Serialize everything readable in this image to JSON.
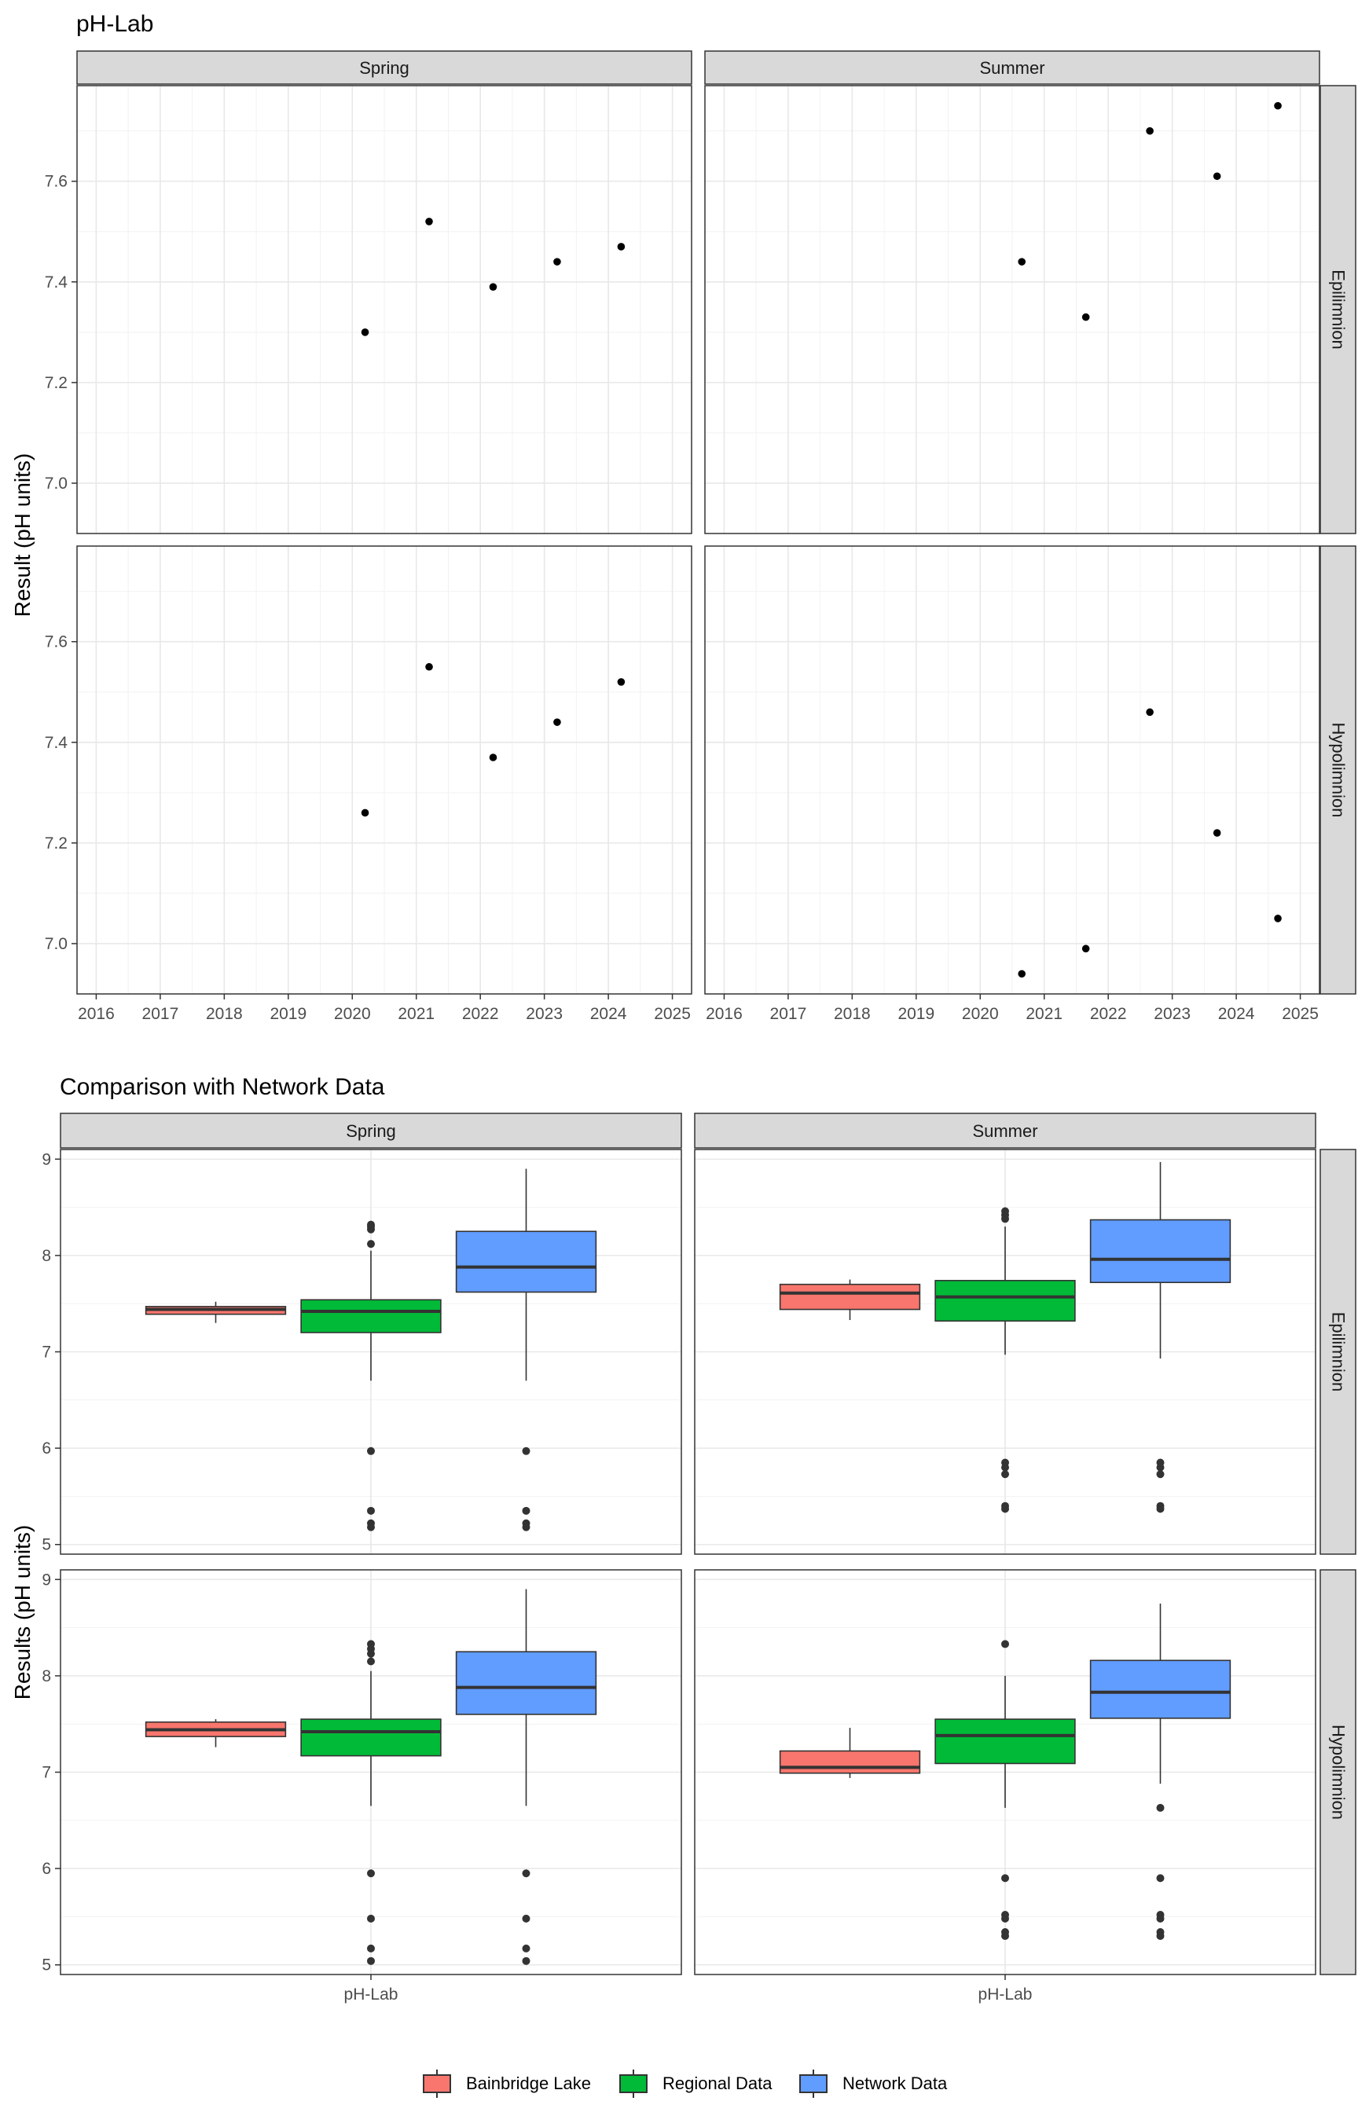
{
  "chart_data": [
    {
      "type": "scatter",
      "title": "pH-Lab",
      "ylabel": "Result (pH units)",
      "xlabel": "",
      "xlim": [
        2015.7,
        2025.3
      ],
      "ylim": [
        6.9,
        7.79
      ],
      "x_ticks": [
        "2016",
        "2017",
        "2018",
        "2019",
        "2020",
        "2021",
        "2022",
        "2023",
        "2024",
        "2025"
      ],
      "y_ticks": [
        "7.0",
        "7.2",
        "7.4",
        "7.6"
      ],
      "col_facets": [
        "Spring",
        "Summer"
      ],
      "row_facets": [
        "Epilimnion",
        "Hypolimnion"
      ],
      "panels": [
        {
          "col": "Spring",
          "row": "Epilimnion",
          "points": [
            [
              2020.2,
              7.3
            ],
            [
              2021.2,
              7.52
            ],
            [
              2022.2,
              7.39
            ],
            [
              2023.2,
              7.44
            ],
            [
              2024.2,
              7.47
            ]
          ]
        },
        {
          "col": "Summer",
          "row": "Epilimnion",
          "points": [
            [
              2020.65,
              7.44
            ],
            [
              2021.65,
              7.33
            ],
            [
              2022.65,
              7.7
            ],
            [
              2023.7,
              7.61
            ],
            [
              2024.65,
              7.75
            ]
          ]
        },
        {
          "col": "Spring",
          "row": "Hypolimnion",
          "points": [
            [
              2020.2,
              7.26
            ],
            [
              2021.2,
              7.55
            ],
            [
              2022.2,
              7.37
            ],
            [
              2023.2,
              7.44
            ],
            [
              2024.2,
              7.52
            ]
          ]
        },
        {
          "col": "Summer",
          "row": "Hypolimnion",
          "points": [
            [
              2020.65,
              6.94
            ],
            [
              2021.65,
              6.99
            ],
            [
              2022.65,
              7.46
            ],
            [
              2023.7,
              7.22
            ],
            [
              2024.65,
              7.05
            ]
          ]
        }
      ]
    },
    {
      "type": "box",
      "title": "Comparison with Network Data",
      "ylabel": "Results (pH units)",
      "xlabel": "",
      "category": "pH-Lab",
      "ylim": [
        4.9,
        9.1
      ],
      "y_ticks": [
        "5",
        "6",
        "7",
        "8",
        "9"
      ],
      "col_facets": [
        "Spring",
        "Summer"
      ],
      "row_facets": [
        "Epilimnion",
        "Hypolimnion"
      ],
      "groups": [
        {
          "name": "Bainbridge Lake",
          "color": "#F8766D"
        },
        {
          "name": "Regional Data",
          "color": "#00BA38"
        },
        {
          "name": "Network Data",
          "color": "#619CFF"
        }
      ],
      "panels": [
        {
          "col": "Spring",
          "row": "Epilimnion",
          "boxes": [
            {
              "group": "Bainbridge Lake",
              "lw": 7.3,
              "q1": 7.39,
              "med": 7.44,
              "q3": 7.47,
              "uw": 7.52,
              "outliers": []
            },
            {
              "group": "Regional Data",
              "lw": 6.7,
              "q1": 7.2,
              "med": 7.42,
              "q3": 7.54,
              "uw": 8.05,
              "outliers": [
                8.12,
                8.27,
                8.3,
                8.32,
                5.97,
                5.35,
                5.22,
                5.18
              ]
            },
            {
              "group": "Network Data",
              "lw": 6.7,
              "q1": 7.62,
              "med": 7.88,
              "q3": 8.25,
              "uw": 8.9,
              "outliers": [
                5.97,
                5.35,
                5.22,
                5.18
              ]
            }
          ]
        },
        {
          "col": "Summer",
          "row": "Epilimnion",
          "boxes": [
            {
              "group": "Bainbridge Lake",
              "lw": 7.33,
              "q1": 7.44,
              "med": 7.61,
              "q3": 7.7,
              "uw": 7.75,
              "outliers": []
            },
            {
              "group": "Regional Data",
              "lw": 6.97,
              "q1": 7.32,
              "med": 7.57,
              "q3": 7.74,
              "uw": 8.3,
              "outliers": [
                8.38,
                8.42,
                8.46,
                5.85,
                5.8,
                5.73,
                5.4,
                5.37
              ]
            },
            {
              "group": "Network Data",
              "lw": 6.93,
              "q1": 7.72,
              "med": 7.96,
              "q3": 8.37,
              "uw": 8.97,
              "outliers": [
                5.85,
                5.8,
                5.73,
                5.4,
                5.37
              ]
            }
          ]
        },
        {
          "col": "Spring",
          "row": "Hypolimnion",
          "boxes": [
            {
              "group": "Bainbridge Lake",
              "lw": 7.26,
              "q1": 7.37,
              "med": 7.44,
              "q3": 7.52,
              "uw": 7.55,
              "outliers": []
            },
            {
              "group": "Regional Data",
              "lw": 6.65,
              "q1": 7.17,
              "med": 7.42,
              "q3": 7.55,
              "uw": 8.05,
              "outliers": [
                8.15,
                8.23,
                8.28,
                8.33,
                5.95,
                5.48,
                5.17,
                5.04
              ]
            },
            {
              "group": "Network Data",
              "lw": 6.65,
              "q1": 7.6,
              "med": 7.88,
              "q3": 8.25,
              "uw": 8.9,
              "outliers": [
                5.95,
                5.48,
                5.17,
                5.04
              ]
            }
          ]
        },
        {
          "col": "Summer",
          "row": "Hypolimnion",
          "boxes": [
            {
              "group": "Bainbridge Lake",
              "lw": 6.94,
              "q1": 6.99,
              "med": 7.05,
              "q3": 7.22,
              "uw": 7.46,
              "outliers": []
            },
            {
              "group": "Regional Data",
              "lw": 6.63,
              "q1": 7.09,
              "med": 7.38,
              "q3": 7.55,
              "uw": 8.0,
              "outliers": [
                8.33,
                5.9,
                5.52,
                5.48,
                5.34,
                5.3
              ]
            },
            {
              "group": "Network Data",
              "lw": 6.88,
              "q1": 7.56,
              "med": 7.83,
              "q3": 8.16,
              "uw": 8.75,
              "outliers": [
                6.63,
                5.9,
                5.52,
                5.48,
                5.34,
                5.3
              ]
            }
          ]
        }
      ]
    }
  ]
}
